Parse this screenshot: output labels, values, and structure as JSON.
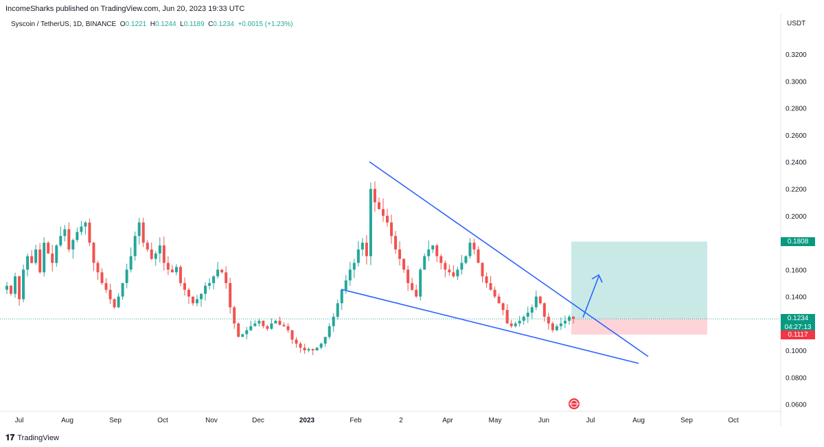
{
  "header": {
    "published": "IncomeSharks published on TradingView.com, Jun 20, 2023 19:33 UTC"
  },
  "legend": {
    "symbol": "Syscoin / TetherUS, 1D, BINANCE",
    "open_label": "O",
    "open": "0.1221",
    "high_label": "H",
    "high": "0.1244",
    "low_label": "L",
    "low": "0.1189",
    "close_label": "C",
    "close": "0.1234",
    "change": "+0.0015 (+1.23%)"
  },
  "axis": {
    "currency": "USDT",
    "price_ticks": [
      "0.3200",
      "0.3000",
      "0.2800",
      "0.2600",
      "0.2400",
      "0.2200",
      "0.2000",
      "0.1800",
      "0.1600",
      "0.1400",
      "0.1200",
      "0.1000",
      "0.0800",
      "0.0600"
    ],
    "time_ticks": [
      "Jul",
      "Aug",
      "Sep",
      "Oct",
      "Nov",
      "Dec",
      "2023",
      "Feb",
      "2",
      "Apr",
      "May",
      "Jun",
      "Jul",
      "Aug",
      "Sep",
      "Oct"
    ]
  },
  "tags": {
    "target": "0.1808",
    "current": "0.1234",
    "countdown": "04:27:13",
    "stop": "0.1117"
  },
  "footer": {
    "brand": "TradingView"
  },
  "colors": {
    "up": "#26a69a",
    "down": "#ef5350",
    "line": "#2962ff",
    "profit_zone": "#b2dfdb",
    "loss_zone": "#ffcdd2"
  },
  "chart_data": {
    "type": "candlestick",
    "ylim": [
      0.056,
      0.33
    ],
    "key_levels": {
      "target": 0.1808,
      "entry": 0.1234,
      "stop": 0.1117
    },
    "candles_close": [
      0.148,
      0.142,
      0.155,
      0.138,
      0.16,
      0.17,
      0.165,
      0.175,
      0.158,
      0.18,
      0.172,
      0.165,
      0.178,
      0.185,
      0.19,
      0.175,
      0.182,
      0.188,
      0.192,
      0.195,
      0.18,
      0.165,
      0.158,
      0.15,
      0.145,
      0.138,
      0.132,
      0.14,
      0.15,
      0.16,
      0.17,
      0.185,
      0.195,
      0.18,
      0.175,
      0.168,
      0.172,
      0.178,
      0.165,
      0.16,
      0.158,
      0.162,
      0.15,
      0.145,
      0.14,
      0.135,
      0.138,
      0.142,
      0.148,
      0.15,
      0.155,
      0.16,
      0.158,
      0.15,
      0.132,
      0.12,
      0.11,
      0.112,
      0.115,
      0.118,
      0.12,
      0.122,
      0.118,
      0.116,
      0.12,
      0.122,
      0.119,
      0.118,
      0.115,
      0.108,
      0.105,
      0.102,
      0.1,
      0.101,
      0.1,
      0.102,
      0.105,
      0.11,
      0.118,
      0.125,
      0.135,
      0.145,
      0.152,
      0.16,
      0.165,
      0.175,
      0.18,
      0.17,
      0.22,
      0.21,
      0.205,
      0.2,
      0.195,
      0.185,
      0.175,
      0.168,
      0.16,
      0.15,
      0.145,
      0.14,
      0.16,
      0.17,
      0.175,
      0.178,
      0.17,
      0.165,
      0.16,
      0.158,
      0.155,
      0.16,
      0.165,
      0.17,
      0.18,
      0.175,
      0.165,
      0.155,
      0.15,
      0.145,
      0.14,
      0.135,
      0.13,
      0.12,
      0.118,
      0.12,
      0.122,
      0.125,
      0.128,
      0.132,
      0.14,
      0.135,
      0.125,
      0.12,
      0.115,
      0.118,
      0.12,
      0.122,
      0.125,
      0.1234
    ],
    "overlays": [
      {
        "name": "upper trendline",
        "from": [
          "Feb",
          0.239
        ],
        "to": [
          "Jul",
          0.096
        ]
      },
      {
        "name": "lower trendline",
        "from": [
          "Jan",
          0.145
        ],
        "to": [
          "Aug",
          0.091
        ]
      },
      {
        "name": "projection arrow",
        "from": [
          "Jun",
          0.123
        ],
        "to": [
          "Jul",
          0.157
        ]
      }
    ]
  }
}
